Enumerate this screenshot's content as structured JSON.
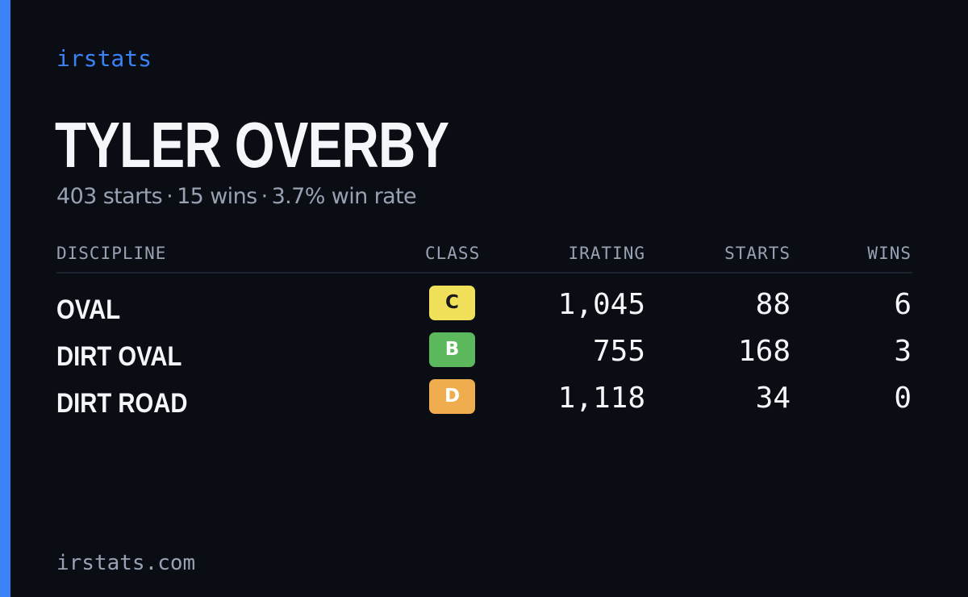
{
  "brand": "irstats",
  "player": {
    "name": "TYLER OVERBY",
    "starts": "403 starts",
    "wins": "15 wins",
    "win_rate": "3.7% win rate",
    "separator": "·"
  },
  "table": {
    "headers": {
      "discipline": "DISCIPLINE",
      "class": "CLASS",
      "irating": "IRATING",
      "starts": "STARTS",
      "wins": "WINS"
    },
    "rows": [
      {
        "discipline": "OVAL",
        "class": "C",
        "class_color": "#f1e05a",
        "class_text_color": "#1a1a1a",
        "irating": "1,045",
        "starts": "88",
        "wins": "6"
      },
      {
        "discipline": "DIRT OVAL",
        "class": "B",
        "class_color": "#5cb85c",
        "class_text_color": "#ffffff",
        "irating": "755",
        "starts": "168",
        "wins": "3"
      },
      {
        "discipline": "DIRT ROAD",
        "class": "D",
        "class_color": "#f0ad4e",
        "class_text_color": "#ffffff",
        "irating": "1,118",
        "starts": "34",
        "wins": "0"
      }
    ]
  },
  "footer": "irstats.com",
  "colors": {
    "accent": "#3b82f6",
    "background": "#0a0d14",
    "muted_text": "#98a2b3",
    "primary_text": "#f4f6fa"
  }
}
